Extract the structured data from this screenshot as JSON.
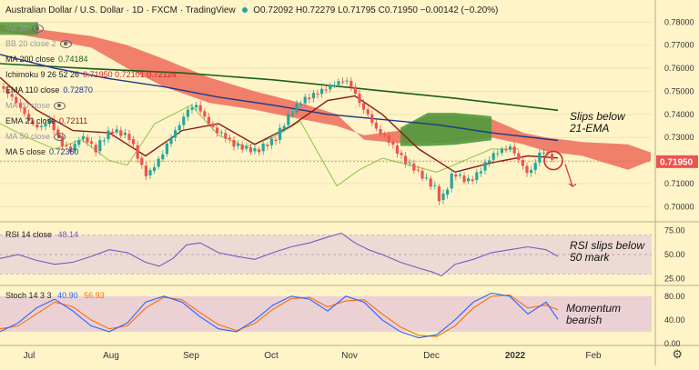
{
  "header": {
    "symbol": "Australian Dollar / U.S. Dollar",
    "interval": "1D",
    "exchange": "FXCM",
    "source": "TradingView",
    "ohlc": "O0.72092 H0.72279 L0.71795 C0.71950 −0.00142 (−0.20%)"
  },
  "legends": [
    {
      "label": "Vol 20",
      "value": "",
      "dim": true
    },
    {
      "label": "BB 20 close 2",
      "value": "",
      "dim": true
    },
    {
      "label": "MA 200 close",
      "value": "0.74184",
      "dim": false,
      "color": "#1b5e20"
    },
    {
      "label": "Ichimoku 9 26 52 26",
      "value": "0.71950  0.72101  0.72124",
      "dim": false,
      "color": "#c62828"
    },
    {
      "label": "EMA 110 close",
      "value": "0.72870",
      "dim": false,
      "color": "#1a3a8a"
    },
    {
      "label": "MA 20 close",
      "value": "",
      "dim": true
    },
    {
      "label": "EMA 21 close",
      "value": "0.72111",
      "dim": false,
      "color": "#8b1a1a"
    },
    {
      "label": "MA 50 close",
      "value": "",
      "dim": true
    },
    {
      "label": "MA 5 close",
      "value": "0.72360",
      "dim": false,
      "color": "#1a3a8a"
    }
  ],
  "rsi_legend": {
    "label": "RSI 14 close",
    "value": "48.14",
    "color": "#7e57c2"
  },
  "stoch_legend": {
    "label": "Stoch 14 3 3",
    "k": "40.90",
    "d": "56.93",
    "k_color": "#2962ff",
    "d_color": "#ff6d00"
  },
  "annotations": {
    "price": "Slips below\n21-EMA",
    "rsi": "RSI slips below\n50 mark",
    "stoch": "Momentum\nbearish"
  },
  "price_label": "0.71950",
  "colors": {
    "background": "#fff4c8",
    "bull": "#26a69a",
    "bear": "#ef5350",
    "cloud_bear": "#ef6b5a",
    "cloud_bull": "#4e9a3c",
    "ma200": "#1b5e20",
    "ema110": "#1a3a8a",
    "ema21": "#8b1a1a",
    "lagging": "#8bc34a",
    "rsi": "#7e57c2",
    "stoch_k": "#2962ff",
    "stoch_d": "#ff6d00"
  },
  "chart_data": [
    {
      "type": "candlestick",
      "title": "Australian Dollar / U.S. Dollar",
      "x_ticks": [
        "Jul",
        "Aug",
        "Sep",
        "Oct",
        "Nov",
        "Dec",
        "2022",
        "Feb"
      ],
      "y_ticks": [
        "0.78000",
        "0.77000",
        "0.76000",
        "0.75000",
        "0.74000",
        "0.73000",
        "0.72000",
        "0.71000",
        "0.70000"
      ],
      "ylim": [
        0.695,
        0.7825
      ],
      "close_path": [
        [
          0,
          0.752
        ],
        [
          12,
          0.748
        ],
        [
          24,
          0.742
        ],
        [
          34,
          0.736
        ],
        [
          44,
          0.734
        ],
        [
          54,
          0.738
        ],
        [
          64,
          0.73
        ],
        [
          70,
          0.726
        ],
        [
          76,
          0.725
        ],
        [
          80,
          0.724
        ],
        [
          86,
          0.73
        ],
        [
          96,
          0.729
        ],
        [
          104,
          0.724
        ],
        [
          112,
          0.729
        ],
        [
          122,
          0.733
        ],
        [
          132,
          0.732
        ],
        [
          142,
          0.73
        ],
        [
          150,
          0.723
        ],
        [
          156,
          0.717
        ],
        [
          162,
          0.713
        ],
        [
          168,
          0.717
        ],
        [
          176,
          0.721
        ],
        [
          186,
          0.729
        ],
        [
          198,
          0.736
        ],
        [
          206,
          0.742
        ],
        [
          216,
          0.744
        ],
        [
          226,
          0.738
        ],
        [
          236,
          0.733
        ],
        [
          246,
          0.731
        ],
        [
          256,
          0.727
        ],
        [
          264,
          0.726
        ],
        [
          272,
          0.725
        ],
        [
          282,
          0.724
        ],
        [
          292,
          0.727
        ],
        [
          302,
          0.729
        ],
        [
          312,
          0.736
        ],
        [
          322,
          0.742
        ],
        [
          332,
          0.746
        ],
        [
          342,
          0.748
        ],
        [
          352,
          0.75
        ],
        [
          362,
          0.752
        ],
        [
          372,
          0.754
        ],
        [
          380,
          0.755
        ],
        [
          388,
          0.751
        ],
        [
          396,
          0.744
        ],
        [
          404,
          0.74
        ],
        [
          414,
          0.733
        ],
        [
          424,
          0.73
        ],
        [
          434,
          0.725
        ],
        [
          444,
          0.72
        ],
        [
          454,
          0.717
        ],
        [
          462,
          0.714
        ],
        [
          470,
          0.711
        ],
        [
          478,
          0.708
        ],
        [
          484,
          0.702
        ],
        [
          490,
          0.707
        ],
        [
          498,
          0.715
        ],
        [
          508,
          0.712
        ],
        [
          516,
          0.711
        ],
        [
          524,
          0.714
        ],
        [
          532,
          0.718
        ],
        [
          540,
          0.722
        ],
        [
          548,
          0.724
        ],
        [
          556,
          0.725
        ],
        [
          562,
          0.726
        ],
        [
          568,
          0.721
        ],
        [
          574,
          0.718
        ],
        [
          580,
          0.714
        ],
        [
          586,
          0.717
        ],
        [
          592,
          0.723
        ],
        [
          598,
          0.724
        ],
        [
          604,
          0.722
        ],
        [
          610,
          0.7195
        ]
      ],
      "ma200_path": [
        [
          0,
          0.762
        ],
        [
          100,
          0.7598
        ],
        [
          200,
          0.758
        ],
        [
          300,
          0.755
        ],
        [
          400,
          0.751
        ],
        [
          500,
          0.747
        ],
        [
          613,
          0.7418
        ]
      ],
      "ema110_path": [
        [
          0,
          0.766
        ],
        [
          60,
          0.76
        ],
        [
          120,
          0.7555
        ],
        [
          180,
          0.752
        ],
        [
          240,
          0.7475
        ],
        [
          300,
          0.744
        ],
        [
          360,
          0.74
        ],
        [
          420,
          0.7378
        ],
        [
          480,
          0.7355
        ],
        [
          540,
          0.732
        ],
        [
          613,
          0.7287
        ]
      ],
      "ema21_path": [
        [
          0,
          0.756
        ],
        [
          40,
          0.742
        ],
        [
          80,
          0.733
        ],
        [
          120,
          0.732
        ],
        [
          160,
          0.722
        ],
        [
          200,
          0.733
        ],
        [
          240,
          0.736
        ],
        [
          280,
          0.727
        ],
        [
          320,
          0.735
        ],
        [
          360,
          0.746
        ],
        [
          390,
          0.748
        ],
        [
          420,
          0.74
        ],
        [
          460,
          0.725
        ],
        [
          500,
          0.715
        ],
        [
          540,
          0.719
        ],
        [
          580,
          0.722
        ],
        [
          613,
          0.7211
        ]
      ],
      "lagging_path": [
        [
          0,
          0.736
        ],
        [
          30,
          0.73
        ],
        [
          60,
          0.725
        ],
        [
          90,
          0.729
        ],
        [
          120,
          0.72
        ],
        [
          140,
          0.718
        ],
        [
          170,
          0.736
        ],
        [
          210,
          0.744
        ],
        [
          240,
          0.731
        ],
        [
          270,
          0.726
        ],
        [
          300,
          0.73
        ],
        [
          330,
          0.737
        ],
        [
          350,
          0.723
        ],
        [
          370,
          0.709
        ],
        [
          395,
          0.716
        ],
        [
          420,
          0.721
        ],
        [
          450,
          0.718
        ],
        [
          480,
          0.715
        ],
        [
          510,
          0.72
        ],
        [
          540,
          0.725
        ],
        [
          570,
          0.725
        ]
      ],
      "cloud_upper": [
        [
          0,
          0.776
        ],
        [
          60,
          0.772
        ],
        [
          100,
          0.769
        ],
        [
          140,
          0.76
        ],
        [
          180,
          0.752
        ],
        [
          230,
          0.745
        ],
        [
          280,
          0.742
        ],
        [
          330,
          0.738
        ],
        [
          370,
          0.735
        ],
        [
          400,
          0.731
        ],
        [
          440,
          0.733
        ],
        [
          470,
          0.7395
        ],
        [
          500,
          0.7395
        ],
        [
          540,
          0.738
        ],
        [
          575,
          0.732
        ],
        [
          600,
          0.73
        ],
        [
          640,
          0.728
        ],
        [
          690,
          0.727
        ],
        [
          715,
          0.7235
        ]
      ],
      "cloud_lower": [
        [
          0,
          0.779
        ],
        [
          60,
          0.776
        ],
        [
          100,
          0.774
        ],
        [
          140,
          0.77
        ],
        [
          180,
          0.764
        ],
        [
          230,
          0.756
        ],
        [
          280,
          0.75
        ],
        [
          330,
          0.745
        ],
        [
          370,
          0.74
        ],
        [
          400,
          0.729
        ],
        [
          440,
          0.7275
        ],
        [
          470,
          0.7275
        ],
        [
          500,
          0.728
        ],
        [
          540,
          0.73
        ],
        [
          575,
          0.727
        ],
        [
          600,
          0.724
        ],
        [
          640,
          0.722
        ],
        [
          690,
          0.716
        ],
        [
          715,
          0.72
        ]
      ],
      "current_price": 0.7195
    },
    {
      "type": "line",
      "title": "RSI 14 close",
      "y_ticks": [
        "75.00",
        "50.00",
        "25.00"
      ],
      "ylim": [
        20,
        80
      ],
      "x": [
        0,
        20,
        40,
        60,
        80,
        100,
        120,
        140,
        160,
        175,
        190,
        205,
        220,
        240,
        260,
        280,
        300,
        320,
        340,
        360,
        375,
        390,
        405,
        420,
        440,
        460,
        475,
        485,
        500,
        520,
        540,
        560,
        580,
        600,
        613
      ],
      "values": [
        46,
        50,
        44,
        40,
        42,
        48,
        55,
        52,
        42,
        38,
        46,
        60,
        62,
        52,
        48,
        45,
        52,
        58,
        62,
        68,
        72,
        62,
        55,
        50,
        42,
        36,
        32,
        28,
        40,
        45,
        52,
        55,
        58,
        55,
        48
      ]
    },
    {
      "type": "line",
      "title": "Stoch 14 3 3",
      "y_ticks": [
        "80.00",
        "40.00",
        "0.00"
      ],
      "ylim": [
        0,
        95
      ],
      "x": [
        0,
        20,
        40,
        60,
        80,
        100,
        120,
        140,
        160,
        180,
        200,
        220,
        240,
        260,
        280,
        300,
        320,
        340,
        360,
        380,
        400,
        420,
        440,
        460,
        480,
        500,
        520,
        540,
        560,
        580,
        600,
        613
      ],
      "k": [
        20,
        35,
        60,
        75,
        55,
        30,
        20,
        35,
        70,
        80,
        70,
        45,
        25,
        20,
        40,
        65,
        80,
        75,
        55,
        80,
        70,
        40,
        20,
        10,
        15,
        40,
        70,
        85,
        80,
        50,
        70,
        41
      ],
      "d": [
        25,
        30,
        50,
        70,
        62,
        40,
        25,
        30,
        60,
        78,
        74,
        52,
        32,
        22,
        34,
        58,
        76,
        78,
        62,
        72,
        74,
        50,
        28,
        14,
        12,
        30,
        60,
        80,
        82,
        60,
        65,
        57
      ]
    }
  ]
}
